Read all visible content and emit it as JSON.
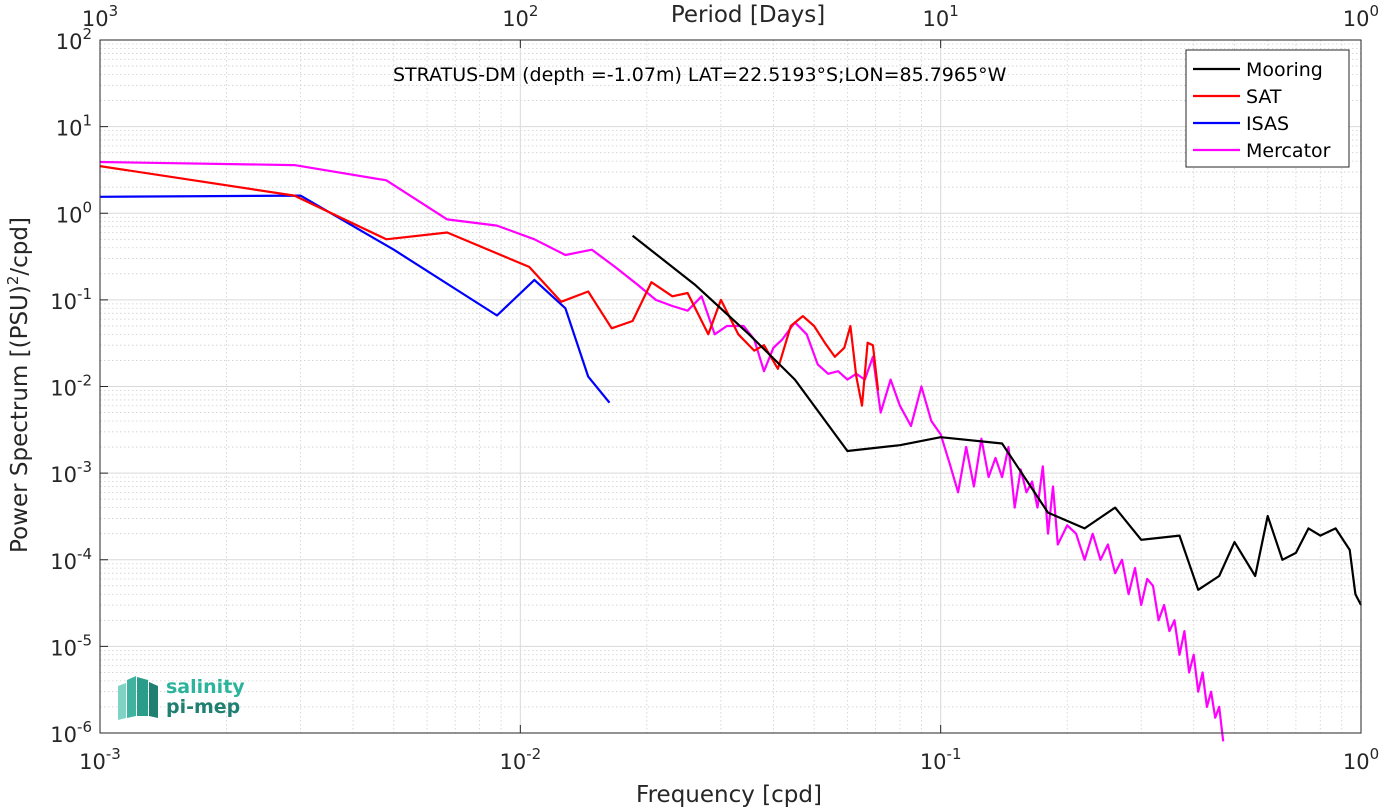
{
  "chart_data": {
    "type": "line",
    "scale": {
      "x": "log",
      "y": "log"
    },
    "xlim": [
      0.001,
      1
    ],
    "ylim": [
      1e-06,
      100
    ],
    "grid": {
      "major": true,
      "minor": true
    },
    "xlabel": "Frequency [cpd]",
    "ylabel_main": "Power Spectrum [(PSU)",
    "ylabel_sup": "2",
    "ylabel_tail": "/cpd]",
    "top_xlabel": "Period [Days]",
    "annotation": "STRATUS-DM (depth =-1.07m) LAT=22.5193°S;LON=85.7965°W",
    "legend_position": "top-right",
    "x_ticks": [
      {
        "value": 0.001,
        "base": "10",
        "exp": "-3"
      },
      {
        "value": 0.01,
        "base": "10",
        "exp": "-2"
      },
      {
        "value": 0.1,
        "base": "10",
        "exp": "-1"
      },
      {
        "value": 1,
        "base": "10",
        "exp": "0"
      }
    ],
    "y_ticks": [
      {
        "value": 1e-06,
        "base": "10",
        "exp": "-6"
      },
      {
        "value": 1e-05,
        "base": "10",
        "exp": "-5"
      },
      {
        "value": 0.0001,
        "base": "10",
        "exp": "-4"
      },
      {
        "value": 0.001,
        "base": "10",
        "exp": "-3"
      },
      {
        "value": 0.01,
        "base": "10",
        "exp": "-2"
      },
      {
        "value": 0.1,
        "base": "10",
        "exp": "-1"
      },
      {
        "value": 1,
        "base": "10",
        "exp": "0"
      },
      {
        "value": 10,
        "base": "10",
        "exp": "1"
      },
      {
        "value": 100,
        "base": "10",
        "exp": "2"
      }
    ],
    "top_ticks": [
      {
        "freq": 0.001,
        "base": "10",
        "exp": "3"
      },
      {
        "freq": 0.01,
        "base": "10",
        "exp": "2"
      },
      {
        "freq": 0.1,
        "base": "10",
        "exp": "1"
      },
      {
        "freq": 1,
        "base": "10",
        "exp": "0"
      }
    ],
    "series": [
      {
        "name": "Mooring",
        "color": "#000000",
        "x": [
          0.0185,
          0.026,
          0.035,
          0.045,
          0.06,
          0.08,
          0.1,
          0.14,
          0.18,
          0.22,
          0.26,
          0.3,
          0.37,
          0.41,
          0.46,
          0.5,
          0.56,
          0.6,
          0.65,
          0.7,
          0.75,
          0.8,
          0.87,
          0.94,
          0.97,
          1.0
        ],
        "y": [
          0.55,
          0.15,
          0.04,
          0.012,
          0.0018,
          0.0021,
          0.0026,
          0.0022,
          0.00035,
          0.00023,
          0.0004,
          0.00017,
          0.00019,
          4.5e-05,
          6.5e-05,
          0.00016,
          6.5e-05,
          0.00032,
          0.0001,
          0.00012,
          0.00023,
          0.00019,
          0.00023,
          0.00013,
          4e-05,
          3e-05
        ]
      },
      {
        "name": "SAT",
        "color": "#ff0000",
        "x": [
          0.001,
          0.0029,
          0.0048,
          0.0067,
          0.0105,
          0.0125,
          0.0145,
          0.0165,
          0.0185,
          0.0205,
          0.023,
          0.025,
          0.028,
          0.03,
          0.033,
          0.036,
          0.038,
          0.041,
          0.044,
          0.047,
          0.05,
          0.053,
          0.056,
          0.059,
          0.061,
          0.063,
          0.065,
          0.067,
          0.069,
          0.071
        ],
        "y": [
          3.5,
          1.6,
          0.5,
          0.6,
          0.24,
          0.095,
          0.125,
          0.047,
          0.057,
          0.16,
          0.11,
          0.12,
          0.04,
          0.1,
          0.04,
          0.026,
          0.03,
          0.016,
          0.05,
          0.065,
          0.05,
          0.032,
          0.022,
          0.028,
          0.05,
          0.013,
          0.006,
          0.032,
          0.03,
          0.009
        ]
      },
      {
        "name": "ISAS",
        "color": "#0000ff",
        "x": [
          0.001,
          0.003,
          0.005,
          0.0088,
          0.0108,
          0.0128,
          0.0145,
          0.0163
        ],
        "y": [
          1.55,
          1.6,
          0.38,
          0.066,
          0.17,
          0.08,
          0.013,
          0.0065
        ]
      },
      {
        "name": "Mercator",
        "color": "#ff00ff",
        "x": [
          0.001,
          0.0029,
          0.0048,
          0.0067,
          0.0088,
          0.0108,
          0.0128,
          0.0148,
          0.0168,
          0.019,
          0.021,
          0.023,
          0.025,
          0.027,
          0.029,
          0.031,
          0.034,
          0.036,
          0.038,
          0.04,
          0.042,
          0.045,
          0.048,
          0.051,
          0.054,
          0.057,
          0.06,
          0.063,
          0.066,
          0.069,
          0.072,
          0.076,
          0.08,
          0.085,
          0.09,
          0.095,
          0.1,
          0.105,
          0.11,
          0.115,
          0.12,
          0.125,
          0.13,
          0.135,
          0.14,
          0.145,
          0.15,
          0.155,
          0.16,
          0.165,
          0.17,
          0.175,
          0.18,
          0.185,
          0.19,
          0.2,
          0.21,
          0.22,
          0.23,
          0.24,
          0.25,
          0.26,
          0.27,
          0.28,
          0.29,
          0.3,
          0.31,
          0.32,
          0.33,
          0.34,
          0.35,
          0.36,
          0.37,
          0.38,
          0.39,
          0.4,
          0.41,
          0.42,
          0.43,
          0.44,
          0.45,
          0.46,
          0.47
        ],
        "y": [
          3.9,
          3.6,
          2.4,
          0.85,
          0.72,
          0.5,
          0.33,
          0.38,
          0.24,
          0.15,
          0.1,
          0.085,
          0.075,
          0.11,
          0.04,
          0.05,
          0.05,
          0.035,
          0.015,
          0.028,
          0.035,
          0.055,
          0.04,
          0.018,
          0.014,
          0.015,
          0.012,
          0.014,
          0.012,
          0.022,
          0.005,
          0.012,
          0.006,
          0.0035,
          0.01,
          0.004,
          0.0028,
          0.0013,
          0.0006,
          0.002,
          0.0007,
          0.0025,
          0.0009,
          0.0015,
          0.0009,
          0.002,
          0.0004,
          0.0011,
          0.0006,
          0.0008,
          0.0004,
          0.0012,
          0.0002,
          0.0007,
          0.00015,
          0.00025,
          0.0002,
          0.0001,
          0.0002,
          0.0001,
          0.00015,
          7e-05,
          0.0001,
          4e-05,
          8e-05,
          3e-05,
          6e-05,
          5e-05,
          2e-05,
          3e-05,
          1.5e-05,
          2e-05,
          8e-06,
          1.5e-05,
          5e-06,
          8e-06,
          3e-06,
          5e-06,
          2e-06,
          3e-06,
          1.5e-06,
          2e-06,
          8e-07
        ]
      }
    ]
  },
  "logo": {
    "line1": "salinity",
    "line2": "pi-mep"
  }
}
